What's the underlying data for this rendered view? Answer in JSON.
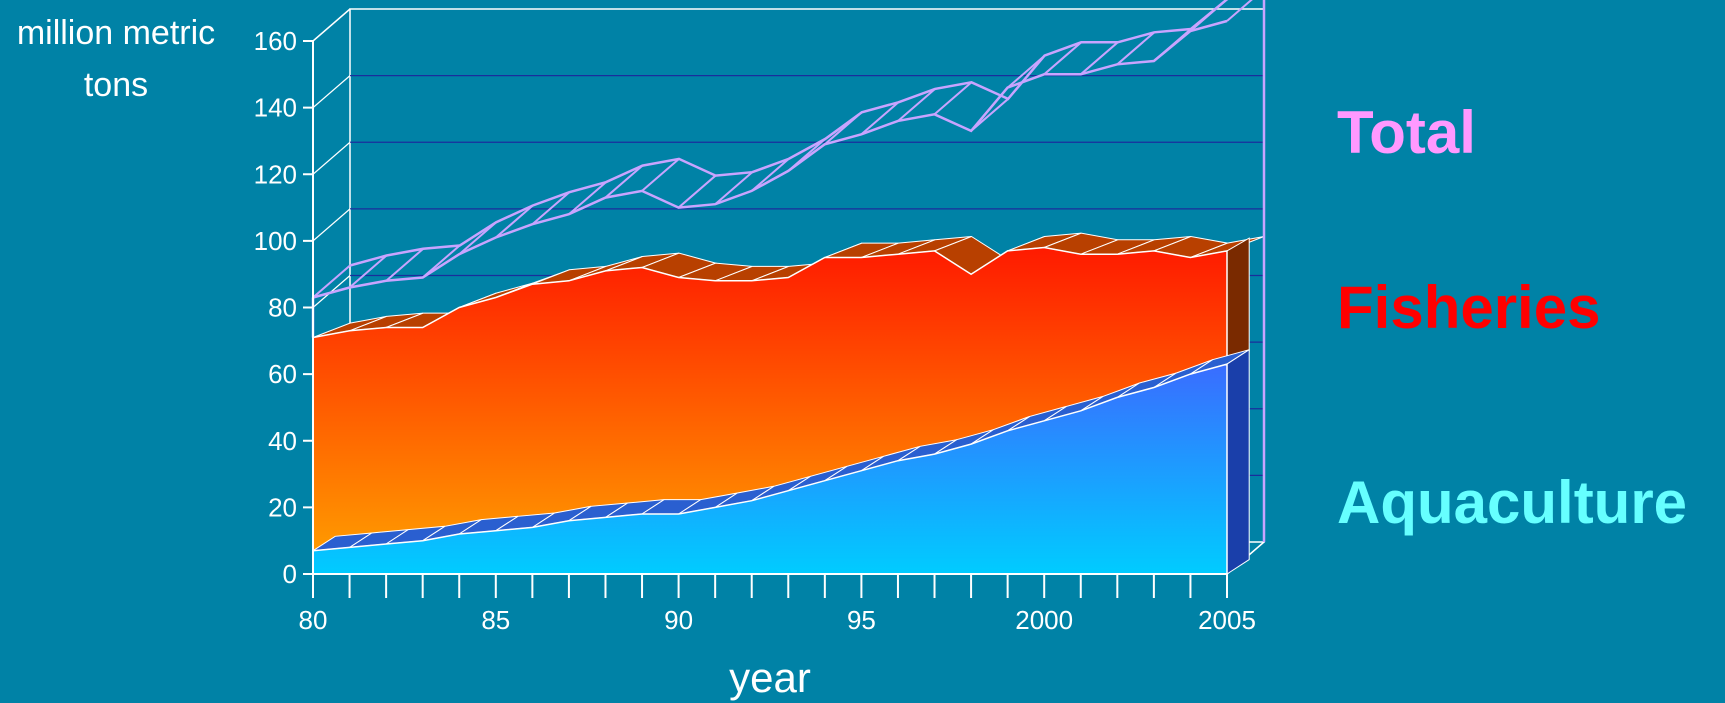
{
  "chart_data": {
    "type": "area",
    "title": "",
    "ylabel_lines": [
      "million metric",
      "tons"
    ],
    "xlabel": "year",
    "xlim": [
      1980,
      2005
    ],
    "ylim": [
      0,
      160
    ],
    "x_ticks": [
      {
        "value": 1980,
        "label": "80"
      },
      {
        "value": 1985,
        "label": "85"
      },
      {
        "value": 1990,
        "label": "90"
      },
      {
        "value": 1995,
        "label": "95"
      },
      {
        "value": 2000,
        "label": "2000"
      },
      {
        "value": 2005,
        "label": "2005"
      }
    ],
    "y_ticks": [
      0,
      20,
      40,
      60,
      80,
      100,
      120,
      140,
      160
    ],
    "grid": true,
    "stacked": true,
    "legend_placement": "right",
    "x": [
      1980,
      1981,
      1982,
      1983,
      1984,
      1985,
      1986,
      1987,
      1988,
      1989,
      1990,
      1991,
      1992,
      1993,
      1994,
      1995,
      1996,
      1997,
      1998,
      1999,
      2000,
      2001,
      2002,
      2003,
      2004,
      2005
    ],
    "series": [
      {
        "name": "Aquaculture",
        "color": "#66ffff",
        "values": [
          7,
          8,
          9,
          10,
          12,
          13,
          14,
          16,
          17,
          18,
          18,
          20,
          22,
          25,
          28,
          31,
          34,
          36,
          39,
          43,
          46,
          49,
          53,
          56,
          60,
          63
        ]
      },
      {
        "name": "Fisheries",
        "color": "#ff0000",
        "values": [
          64,
          65,
          65,
          64,
          68,
          70,
          73,
          72,
          74,
          74,
          71,
          68,
          66,
          64,
          67,
          64,
          62,
          61,
          51,
          54,
          52,
          47,
          43,
          41,
          35,
          34
        ]
      },
      {
        "name": "Total",
        "color": "#ff99ff",
        "values": [
          83,
          86,
          88,
          89,
          96,
          101,
          105,
          108,
          113,
          115,
          110,
          111,
          115,
          121,
          129,
          132,
          136,
          138,
          133,
          146,
          150,
          150,
          153,
          154,
          163,
          166
        ]
      }
    ]
  },
  "colors": {
    "background": "#0082a6",
    "aquaculture_top": "#3a6cff",
    "aquaculture_bottom": "#00ccff",
    "fisheries_top": "#ff1a00",
    "fisheries_bottom": "#ff9900",
    "total_line": "#c8a4ff",
    "axis": "#ffffff",
    "grid": "#1a2e9c"
  }
}
